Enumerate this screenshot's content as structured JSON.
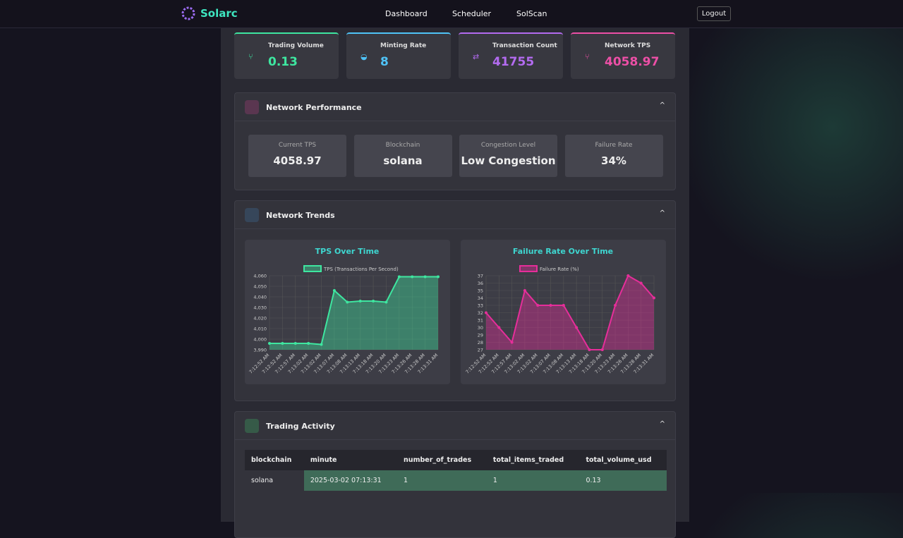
{
  "nav": {
    "brand": "Solarc",
    "links": [
      "Dashboard",
      "Scheduler",
      "SolScan"
    ],
    "logout": "Logout"
  },
  "stats": [
    {
      "label": "Trading Volume",
      "value": "0.13",
      "color": "#3ee6a0"
    },
    {
      "label": "Minting Rate",
      "value": "8",
      "color": "#4fc3f7"
    },
    {
      "label": "Transaction Count",
      "value": "41755",
      "color": "#b36bf0"
    },
    {
      "label": "Network TPS",
      "value": "4058.97",
      "color": "#ec4fa6"
    }
  ],
  "performance": {
    "title": "Network Performance",
    "metrics": [
      {
        "label": "Current TPS",
        "value": "4058.97"
      },
      {
        "label": "Blockchain",
        "value": "solana"
      },
      {
        "label": "Congestion Level",
        "value": "Low Congestion"
      },
      {
        "label": "Failure Rate",
        "value": "34%"
      }
    ]
  },
  "trends": {
    "title": "Network Trends"
  },
  "chart_data": [
    {
      "type": "line",
      "title": "TPS Over Time",
      "series_name": "TPS (Transactions Per Second)",
      "color": "#3ee6a0",
      "categories": [
        "7:12:52 AM",
        "7:12:52 AM",
        "7:12:57 AM",
        "7:13:02 AM",
        "7:13:02 AM",
        "7:13:07 AM",
        "7:13:08 AM",
        "7:13:13 AM",
        "7:13:18 AM",
        "7:13:20 AM",
        "7:13:23 AM",
        "7:13:26 AM",
        "7:13:28 AM",
        "7:13:31 AM"
      ],
      "values": [
        3996,
        3996,
        3996,
        3996,
        3995,
        4046,
        4035,
        4036,
        4036,
        4035,
        4059,
        4059,
        4059,
        4059
      ],
      "ylim": [
        3990,
        4060
      ],
      "yticks": [
        {
          "value": 3990,
          "label": "3,990"
        },
        {
          "value": 4000,
          "label": "4,000"
        },
        {
          "value": 4010,
          "label": "4,010"
        },
        {
          "value": 4020,
          "label": "4,020"
        },
        {
          "value": 4030,
          "label": "4,030"
        },
        {
          "value": 4040,
          "label": "4,040"
        },
        {
          "value": 4050,
          "label": "4,050"
        },
        {
          "value": 4060,
          "label": "4,060"
        }
      ],
      "grid": true
    },
    {
      "type": "line",
      "title": "Failure Rate Over Time",
      "series_name": "Failure Rate (%)",
      "color": "#e62e9a",
      "categories": [
        "7:12:52 AM",
        "7:12:52 AM",
        "7:12:57 AM",
        "7:13:02 AM",
        "7:13:02 AM",
        "7:13:07 AM",
        "7:13:08 AM",
        "7:13:13 AM",
        "7:13:18 AM",
        "7:13:20 AM",
        "7:13:23 AM",
        "7:13:26 AM",
        "7:13:28 AM",
        "7:13:31 AM"
      ],
      "values": [
        32,
        30,
        28,
        35,
        33,
        33,
        33,
        30,
        27,
        27,
        33,
        37,
        36,
        34
      ],
      "ylim": [
        27,
        37
      ],
      "yticks": [
        27,
        28,
        29,
        30,
        31,
        32,
        33,
        34,
        35,
        36,
        37
      ],
      "grid": true
    }
  ],
  "trading": {
    "title": "Trading Activity",
    "columns": [
      "blockchain",
      "minute",
      "number_of_trades",
      "total_items_traded",
      "total_volume_usd"
    ],
    "rows": [
      [
        "solana",
        "2025-03-02 07:13:31",
        "1",
        "1",
        "0.13"
      ]
    ]
  }
}
